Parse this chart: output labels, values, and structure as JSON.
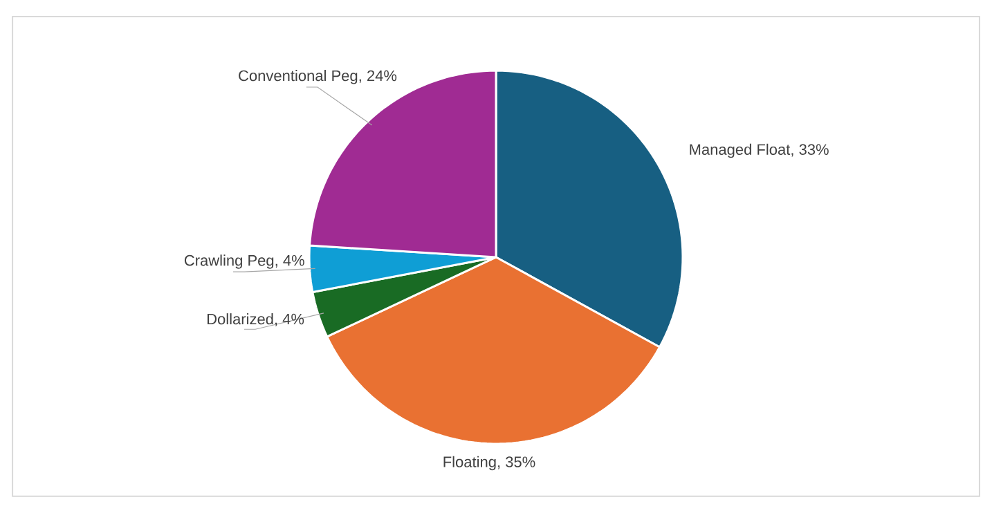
{
  "chart_data": {
    "type": "pie",
    "categories": [
      "Managed Float",
      "Floating",
      "Dollarized",
      "Crawling Peg",
      "Conventional Peg"
    ],
    "values": [
      33,
      35,
      4,
      4,
      24
    ],
    "value_labels": [
      ", 33%",
      ", 35%",
      ", 4%",
      ", 4%",
      ", 24%"
    ],
    "colors": [
      "#175f82",
      "#e97132",
      "#196b24",
      "#0f9ed5",
      "#a02b93"
    ]
  }
}
